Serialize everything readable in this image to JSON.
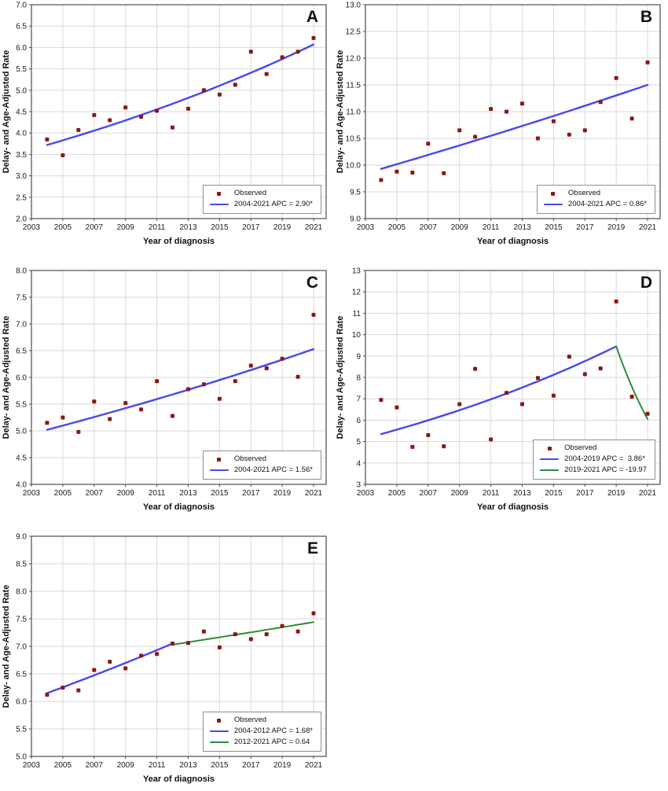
{
  "figure": {
    "ylabel": "Delay- and Age-Adjusted Rate",
    "xlabel": "Year of diagnosis",
    "observed_label": "Observed"
  },
  "colors": {
    "observed": "#8b1717",
    "blue": "#4848ef",
    "green": "#2e8b35",
    "grid": "#d9d9d9",
    "border": "#4d4d4d",
    "text": "#111111"
  },
  "chart_data": [
    {
      "type": "scatter",
      "panel": "A",
      "title": "",
      "xlabel": "Year of diagnosis",
      "ylabel": "Delay- and Age-Adjusted Rate",
      "grid": true,
      "legend_position": "bottom-right",
      "xlim": [
        2003,
        2021.8
      ],
      "ylim": [
        2.0,
        7.0
      ],
      "ytick_step": 0.5,
      "ytick_decimals": 1,
      "xticks": [
        2003,
        2005,
        2007,
        2009,
        2011,
        2013,
        2015,
        2017,
        2019,
        2021
      ],
      "years": [
        2004,
        2005,
        2006,
        2007,
        2008,
        2009,
        2010,
        2011,
        2012,
        2013,
        2014,
        2015,
        2016,
        2017,
        2018,
        2019,
        2020,
        2021
      ],
      "observed": [
        3.85,
        3.48,
        4.07,
        4.42,
        4.3,
        4.6,
        4.38,
        4.52,
        4.13,
        4.57,
        5.0,
        4.9,
        5.13,
        5.9,
        5.38,
        5.77,
        5.9,
        6.22
      ],
      "trends": [
        {
          "label": "2004-2021 APC = 2.90*",
          "color": "blue",
          "x": [
            2004,
            2021
          ],
          "y": [
            3.72,
            6.07
          ]
        }
      ]
    },
    {
      "type": "scatter",
      "panel": "B",
      "title": "",
      "xlabel": "Year of diagnosis",
      "ylabel": "Delay- and Age-Adjusted Rate",
      "grid": true,
      "legend_position": "bottom-right",
      "xlim": [
        2003,
        2021.8
      ],
      "ylim": [
        9.0,
        13.0
      ],
      "ytick_step": 0.5,
      "ytick_decimals": 1,
      "xticks": [
        2003,
        2005,
        2007,
        2009,
        2011,
        2013,
        2015,
        2017,
        2019,
        2021
      ],
      "years": [
        2004,
        2005,
        2006,
        2007,
        2008,
        2009,
        2010,
        2011,
        2012,
        2013,
        2014,
        2015,
        2016,
        2017,
        2018,
        2019,
        2020,
        2021
      ],
      "observed": [
        9.72,
        9.88,
        9.86,
        10.4,
        9.85,
        10.65,
        10.53,
        11.05,
        11.0,
        11.15,
        10.5,
        10.82,
        10.57,
        10.65,
        11.18,
        11.63,
        10.87,
        11.92
      ],
      "trends": [
        {
          "label": "2004-2021 APC = 0.86*",
          "color": "blue",
          "x": [
            2004,
            2021
          ],
          "y": [
            9.93,
            11.5
          ]
        }
      ]
    },
    {
      "type": "scatter",
      "panel": "C",
      "title": "",
      "xlabel": "Year of diagnosis",
      "ylabel": "Delay- and Age-Adjusted Rate",
      "grid": true,
      "legend_position": "bottom-right",
      "xlim": [
        2003,
        2021.8
      ],
      "ylim": [
        4.0,
        8.0
      ],
      "ytick_step": 0.5,
      "ytick_decimals": 1,
      "xticks": [
        2003,
        2005,
        2007,
        2009,
        2011,
        2013,
        2015,
        2017,
        2019,
        2021
      ],
      "years": [
        2004,
        2005,
        2006,
        2007,
        2008,
        2009,
        2010,
        2011,
        2012,
        2013,
        2014,
        2015,
        2016,
        2017,
        2018,
        2019,
        2020,
        2021
      ],
      "observed": [
        5.15,
        5.25,
        4.98,
        5.55,
        5.22,
        5.52,
        5.4,
        5.93,
        5.28,
        5.78,
        5.87,
        5.6,
        5.93,
        6.22,
        6.17,
        6.35,
        6.01,
        7.17
      ],
      "trends": [
        {
          "label": "2004-2021 APC = 1.56*",
          "color": "blue",
          "x": [
            2004,
            2021
          ],
          "y": [
            5.02,
            6.53
          ]
        }
      ]
    },
    {
      "type": "scatter",
      "panel": "D",
      "title": "",
      "xlabel": "Year of diagnosis",
      "ylabel": "Delay- and Age-Adjusted Rate",
      "grid": true,
      "legend_position": "bottom-right",
      "xlim": [
        2003,
        2021.8
      ],
      "ylim": [
        3,
        13
      ],
      "ytick_step": 1,
      "ytick_decimals": 0,
      "xticks": [
        2003,
        2005,
        2007,
        2009,
        2011,
        2013,
        2015,
        2017,
        2019,
        2021
      ],
      "years": [
        2004,
        2005,
        2006,
        2007,
        2008,
        2009,
        2010,
        2011,
        2012,
        2013,
        2014,
        2015,
        2016,
        2017,
        2018,
        2019,
        2020,
        2021
      ],
      "observed": [
        6.95,
        6.6,
        4.75,
        5.3,
        4.78,
        6.75,
        8.4,
        5.1,
        7.28,
        6.75,
        7.97,
        7.15,
        8.97,
        8.15,
        8.42,
        11.55,
        7.1,
        6.3
      ],
      "trends": [
        {
          "label": "2004-2019 APC =  3.86*",
          "color": "blue",
          "x": [
            2004,
            2019
          ],
          "y": [
            5.35,
            9.45
          ]
        },
        {
          "label": "2019-2021 APC = -19.97",
          "color": "green",
          "x": [
            2019,
            2021
          ],
          "y": [
            9.45,
            6.05
          ]
        }
      ]
    },
    {
      "type": "scatter",
      "panel": "E",
      "title": "",
      "xlabel": "Year of diagnosis",
      "ylabel": "Delay- and Age-Adjusted Rate",
      "grid": true,
      "legend_position": "bottom-right",
      "xlim": [
        2003,
        2021.8
      ],
      "ylim": [
        5.0,
        9.0
      ],
      "ytick_step": 0.5,
      "ytick_decimals": 1,
      "xticks": [
        2003,
        2005,
        2007,
        2009,
        2011,
        2013,
        2015,
        2017,
        2019,
        2021
      ],
      "years": [
        2004,
        2005,
        2006,
        2007,
        2008,
        2009,
        2010,
        2011,
        2012,
        2013,
        2014,
        2015,
        2016,
        2017,
        2018,
        2019,
        2020,
        2021
      ],
      "observed": [
        6.12,
        6.25,
        6.2,
        6.57,
        6.72,
        6.6,
        6.83,
        6.86,
        7.05,
        7.06,
        7.27,
        6.98,
        7.22,
        7.13,
        7.22,
        7.37,
        7.27,
        7.6
      ],
      "trends": [
        {
          "label": "2004-2012 APC = 1.68*",
          "color": "blue",
          "x": [
            2004,
            2012
          ],
          "y": [
            6.15,
            7.05
          ]
        },
        {
          "label": "2012-2021 APC = 0.64",
          "color": "green",
          "x": [
            2012,
            2021
          ],
          "y": [
            7.03,
            7.44
          ]
        }
      ]
    }
  ]
}
